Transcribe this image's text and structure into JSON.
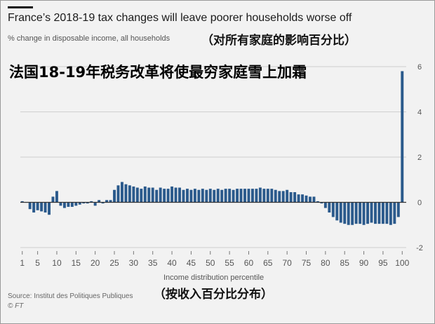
{
  "header": {
    "title": "France’s 2018-19 tax changes will leave poorer households worse off",
    "subtitle": "% change in disposable income, all households",
    "subtitle_zh": "（对所有家庭的影响百分比）",
    "overlay_zh": "法国18-19年税务改革将使最穷家庭雪上加霜"
  },
  "footer": {
    "xlabel": "Income distribution percentile",
    "xlabel_zh": "（按收入百分比分布）",
    "source": "Source: Institut des Politiques Publiques",
    "credit": "© FT"
  },
  "colors": {
    "bar": "#2b5a8c",
    "zero_line": "#333333",
    "grid": "#cfcfcf",
    "tick_text": "#555555"
  },
  "chart_data": {
    "type": "bar",
    "title": "France’s 2018-19 tax changes will leave poorer households worse off",
    "xlabel": "Income distribution percentile",
    "ylabel": "% change in disposable income, all households",
    "x": [
      1,
      2,
      3,
      4,
      5,
      6,
      7,
      8,
      9,
      10,
      11,
      12,
      13,
      14,
      15,
      16,
      17,
      18,
      19,
      20,
      21,
      22,
      23,
      24,
      25,
      26,
      27,
      28,
      29,
      30,
      31,
      32,
      33,
      34,
      35,
      36,
      37,
      38,
      39,
      40,
      41,
      42,
      43,
      44,
      45,
      46,
      47,
      48,
      49,
      50,
      51,
      52,
      53,
      54,
      55,
      56,
      57,
      58,
      59,
      60,
      61,
      62,
      63,
      64,
      65,
      66,
      67,
      68,
      69,
      70,
      71,
      72,
      73,
      74,
      75,
      76,
      77,
      78,
      79,
      80,
      81,
      82,
      83,
      84,
      85,
      86,
      87,
      88,
      89,
      90,
      91,
      92,
      93,
      94,
      95,
      96,
      97,
      98,
      99,
      100
    ],
    "values": [
      0.05,
      0.0,
      -0.3,
      -0.45,
      -0.35,
      -0.4,
      -0.45,
      -0.55,
      0.25,
      0.5,
      -0.15,
      -0.25,
      -0.2,
      -0.2,
      -0.15,
      -0.1,
      -0.05,
      -0.05,
      0.05,
      -0.15,
      0.1,
      -0.05,
      0.1,
      0.1,
      0.55,
      0.75,
      0.9,
      0.8,
      0.75,
      0.7,
      0.65,
      0.6,
      0.7,
      0.65,
      0.65,
      0.55,
      0.65,
      0.6,
      0.6,
      0.7,
      0.65,
      0.65,
      0.55,
      0.6,
      0.55,
      0.6,
      0.55,
      0.6,
      0.55,
      0.6,
      0.55,
      0.6,
      0.55,
      0.6,
      0.6,
      0.55,
      0.6,
      0.6,
      0.6,
      0.6,
      0.6,
      0.6,
      0.65,
      0.6,
      0.6,
      0.6,
      0.55,
      0.5,
      0.5,
      0.55,
      0.45,
      0.45,
      0.35,
      0.35,
      0.3,
      0.25,
      0.25,
      0.05,
      -0.05,
      -0.25,
      -0.45,
      -0.65,
      -0.8,
      -0.9,
      -0.95,
      -1.0,
      -1.0,
      -0.95,
      -0.95,
      -1.0,
      -0.95,
      -0.9,
      -0.95,
      -0.95,
      -0.95,
      -0.95,
      -1.0,
      -0.95,
      -0.65,
      5.8
    ],
    "xticks": [
      1,
      5,
      10,
      15,
      20,
      25,
      30,
      35,
      40,
      45,
      50,
      55,
      60,
      65,
      70,
      75,
      80,
      85,
      90,
      95,
      100
    ],
    "yticks": [
      -2,
      0,
      2,
      4,
      6
    ],
    "ylim": [
      -2,
      6
    ],
    "grid": true,
    "y_axis_side": "right"
  }
}
